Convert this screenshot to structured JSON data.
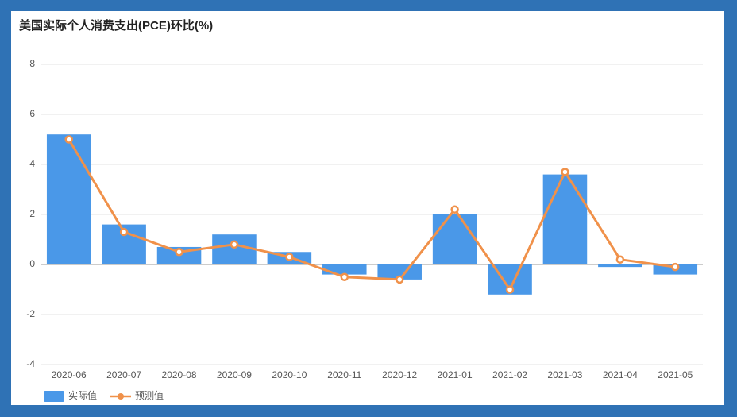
{
  "chart_data": {
    "type": "bar",
    "title": "美国实际个人消费支出(PCE)环比(%)",
    "categories": [
      "2020-06",
      "2020-07",
      "2020-08",
      "2020-09",
      "2020-10",
      "2020-11",
      "2020-12",
      "2021-01",
      "2021-02",
      "2021-03",
      "2021-04",
      "2021-05"
    ],
    "series": [
      {
        "name": "实际值",
        "type": "bar",
        "color": "#4a98e8",
        "values": [
          5.2,
          1.6,
          0.7,
          1.2,
          0.5,
          -0.4,
          -0.6,
          2.0,
          -1.2,
          3.6,
          -0.1,
          -0.4
        ]
      },
      {
        "name": "预测值",
        "type": "line",
        "color": "#f0914a",
        "values": [
          5.0,
          1.3,
          0.5,
          0.8,
          0.3,
          -0.5,
          -0.6,
          2.2,
          -1.0,
          3.7,
          0.2,
          -0.1
        ]
      }
    ],
    "ylim": [
      -4,
      8
    ],
    "yticks": [
      -4,
      -2,
      0,
      2,
      4,
      6,
      8
    ],
    "grid": true,
    "legend": "bottom-left"
  }
}
